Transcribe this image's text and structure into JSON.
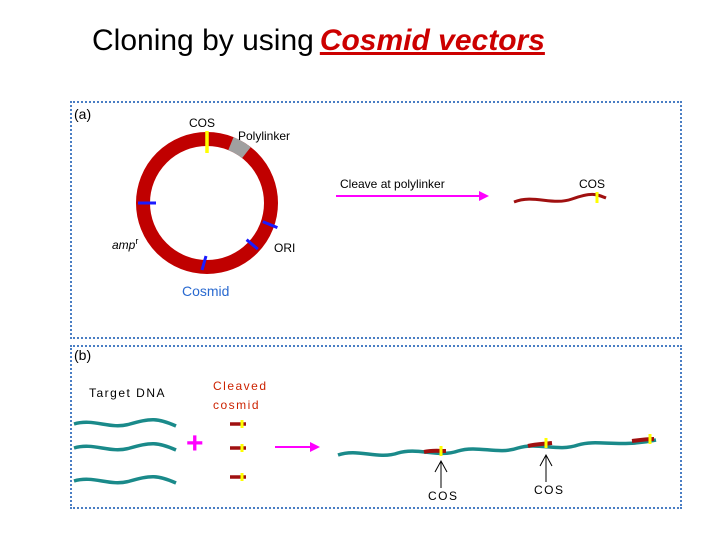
{
  "title": {
    "prefix": "Cloning by using",
    "emphasis": "Cosmid vectors"
  },
  "panel_a": {
    "label": "(a)",
    "cos_label": "COS",
    "polylinker_label": "Polylinker",
    "amp_label": "amp",
    "amp_superscript": "r",
    "ori_label": "ORI",
    "cosmid_label": "Cosmid",
    "arrow_label": "Cleave at polylinker",
    "linear_cos_label": "COS"
  },
  "panel_b": {
    "label": "(b)",
    "target_dna_label": "Target DNA",
    "cleaved_cosmid_line1": "Cleaved",
    "cleaved_cosmid_line2": "cosmid",
    "plus_sign": "+",
    "cos_label_1": "COS",
    "cos_label_2": "COS"
  },
  "colors": {
    "title_accent": "#cc0000",
    "cosmid_ring": "#c00000",
    "cos_site": "#ffff00",
    "polylinker": "#a0a0a0",
    "marker_blue": "#1a1aff",
    "arrow_magenta": "#ff00ff",
    "target_dna": "#1a8a8a",
    "cosmid_text": "#2a6ad0",
    "cleaved_text": "#cc2200",
    "panel_border": "#4a7ec4"
  }
}
